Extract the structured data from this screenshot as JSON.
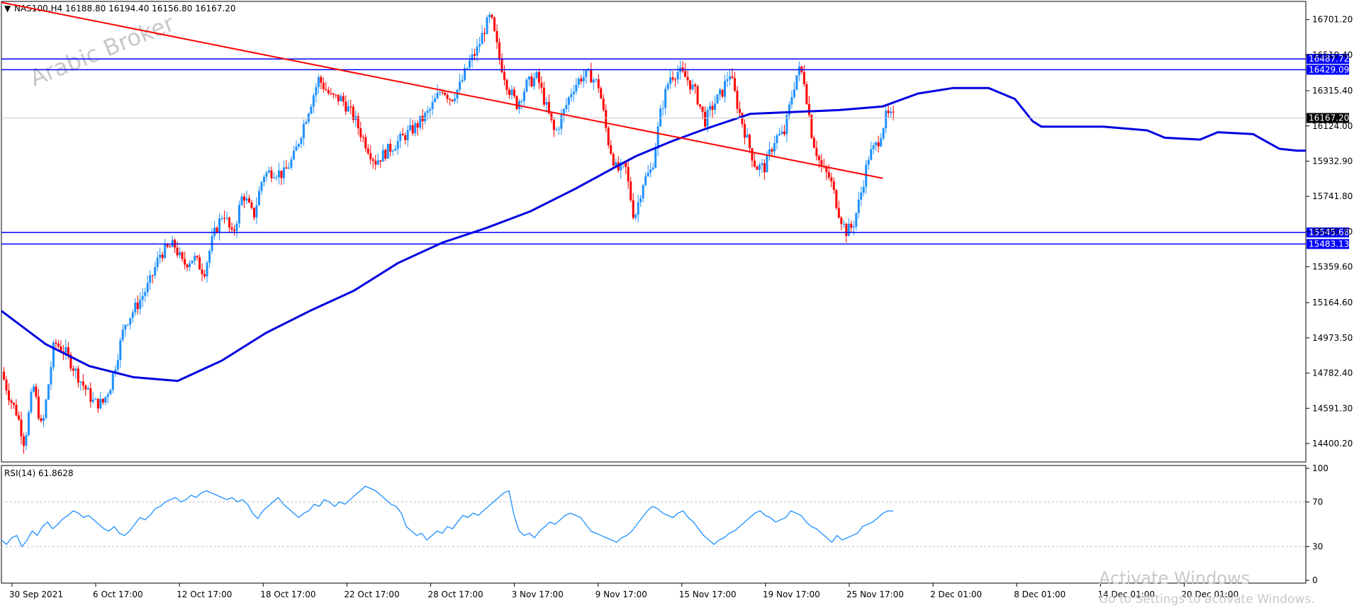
{
  "header": {
    "symbol": "NAS100,H4",
    "ohlc": "16188.80 16194.40 16156.80 16167.20",
    "arrow_glyph": "▼"
  },
  "watermark": "Arabic Broker",
  "os_watermark": {
    "line1": "Activate Windows",
    "line2": "Go to Settings to activate Windows."
  },
  "colors": {
    "bull": "#1e90ff",
    "bear": "#ff0000",
    "ma": "#0000e0",
    "trendline": "#ff0000",
    "level": "#0000ff",
    "rsi": "#1e90ff",
    "grid_dash": "#c0c0c0",
    "last_price_bg": "#000000",
    "level_label_bg": "#0000ff"
  },
  "chart_data": [
    {
      "type": "candlestick",
      "name": "price",
      "ylim": [
        14300,
        16800
      ],
      "y_ticks": [
        "16701.20",
        "16510.40",
        "16315.40",
        "16124.00",
        "15932.90",
        "15741.80",
        "15550.70",
        "15359.60",
        "15164.60",
        "14973.50",
        "14782.40",
        "14591.30",
        "14400.20"
      ],
      "x_ticks": [
        "30 Sep 2021",
        "6 Oct 17:00",
        "12 Oct 17:00",
        "18 Oct 17:00",
        "22 Oct 17:00",
        "28 Oct 17:00",
        "3 Nov 17:00",
        "9 Nov 17:00",
        "15 Nov 17:00",
        "19 Nov 17:00",
        "25 Nov 17:00",
        "2 Dec 01:00",
        "8 Dec 01:00",
        "14 Dec 01:00",
        "20 Dec 01:00"
      ],
      "bar_count": 360,
      "close_path": [
        [
          0,
          14790
        ],
        [
          10,
          14640
        ],
        [
          18,
          14560
        ],
        [
          26,
          14400
        ],
        [
          36,
          14720
        ],
        [
          46,
          14470
        ],
        [
          60,
          14950
        ],
        [
          72,
          14900
        ],
        [
          90,
          14740
        ],
        [
          105,
          14620
        ],
        [
          115,
          14620
        ],
        [
          124,
          14720
        ],
        [
          140,
          15050
        ],
        [
          155,
          15160
        ],
        [
          168,
          15270
        ],
        [
          180,
          15430
        ],
        [
          196,
          15480
        ],
        [
          206,
          15370
        ],
        [
          218,
          15410
        ],
        [
          230,
          15330
        ],
        [
          240,
          15520
        ],
        [
          252,
          15660
        ],
        [
          262,
          15520
        ],
        [
          274,
          15760
        ],
        [
          286,
          15630
        ],
        [
          297,
          15860
        ],
        [
          309,
          15880
        ],
        [
          320,
          15860
        ],
        [
          332,
          15960
        ],
        [
          344,
          16150
        ],
        [
          360,
          16380
        ],
        [
          374,
          16280
        ],
        [
          386,
          16270
        ],
        [
          400,
          16170
        ],
        [
          410,
          16060
        ],
        [
          424,
          15930
        ],
        [
          438,
          15990
        ],
        [
          455,
          16060
        ],
        [
          470,
          16120
        ],
        [
          485,
          16200
        ],
        [
          500,
          16330
        ],
        [
          510,
          16270
        ],
        [
          520,
          16340
        ],
        [
          530,
          16460
        ],
        [
          540,
          16540
        ],
        [
          548,
          16650
        ],
        [
          555,
          16720
        ],
        [
          565,
          16490
        ],
        [
          575,
          16330
        ],
        [
          585,
          16240
        ],
        [
          596,
          16350
        ],
        [
          608,
          16390
        ],
        [
          618,
          16230
        ],
        [
          628,
          16080
        ],
        [
          638,
          16200
        ],
        [
          648,
          16330
        ],
        [
          658,
          16390
        ],
        [
          668,
          16400
        ],
        [
          678,
          16340
        ],
        [
          688,
          16050
        ],
        [
          698,
          15880
        ],
        [
          708,
          15900
        ],
        [
          718,
          15620
        ],
        [
          728,
          15820
        ],
        [
          738,
          15890
        ],
        [
          748,
          16200
        ],
        [
          758,
          16390
        ],
        [
          768,
          16420
        ],
        [
          778,
          16380
        ],
        [
          788,
          16300
        ],
        [
          798,
          16150
        ],
        [
          808,
          16240
        ],
        [
          818,
          16310
        ],
        [
          826,
          16420
        ],
        [
          836,
          16220
        ],
        [
          846,
          16050
        ],
        [
          856,
          15900
        ],
        [
          866,
          15900
        ],
        [
          878,
          16060
        ],
        [
          888,
          16080
        ],
        [
          898,
          16320
        ],
        [
          904,
          16430
        ],
        [
          910,
          16400
        ],
        [
          920,
          16060
        ],
        [
          930,
          15900
        ],
        [
          940,
          15840
        ],
        [
          950,
          15660
        ],
        [
          958,
          15550
        ],
        [
          966,
          15580
        ],
        [
          974,
          15730
        ],
        [
          984,
          15960
        ],
        [
          994,
          16030
        ],
        [
          1004,
          16180
        ],
        [
          1012,
          16167
        ]
      ],
      "moving_average": {
        "period": null,
        "points": [
          [
            0,
            15120
          ],
          [
            50,
            14940
          ],
          [
            100,
            14820
          ],
          [
            150,
            14760
          ],
          [
            200,
            14740
          ],
          [
            250,
            14850
          ],
          [
            300,
            15000
          ],
          [
            350,
            15120
          ],
          [
            400,
            15230
          ],
          [
            450,
            15380
          ],
          [
            500,
            15490
          ],
          [
            550,
            15570
          ],
          [
            600,
            15660
          ],
          [
            650,
            15780
          ],
          [
            700,
            15910
          ],
          [
            720,
            15960
          ],
          [
            760,
            16040
          ],
          [
            800,
            16110
          ],
          [
            850,
            16190
          ],
          [
            900,
            16200
          ],
          [
            950,
            16210
          ],
          [
            1000,
            16230
          ],
          [
            1040,
            16300
          ],
          [
            1080,
            16330
          ],
          [
            1120,
            16330
          ],
          [
            1150,
            16270
          ],
          [
            1170,
            16150
          ],
          [
            1180,
            16120
          ],
          [
            1250,
            16120
          ],
          [
            1300,
            16100
          ],
          [
            1320,
            16060
          ],
          [
            1360,
            16050
          ],
          [
            1380,
            16090
          ],
          [
            1420,
            16080
          ],
          [
            1450,
            16000
          ],
          [
            1470,
            15990
          ],
          [
            1480,
            15990
          ]
        ]
      },
      "trendline": {
        "from": {
          "bar": 0,
          "value": 16795
        },
        "to": {
          "bar": 1000,
          "value": 15840
        }
      },
      "horizontal_levels": [
        {
          "label": "16487.72",
          "value": 16487.72
        },
        {
          "label": "16429.09",
          "value": 16429.09
        },
        {
          "label": "15545.68",
          "value": 15545.68
        },
        {
          "label": "15483.13",
          "value": 15483.13
        }
      ],
      "last_price": {
        "label": "16167.20",
        "value": 16167.2
      }
    },
    {
      "type": "line",
      "name": "RSI(14) 61.8628",
      "title": "RSI(14) 61.8628",
      "ylim": [
        0,
        100
      ],
      "y_ticks": [
        "100",
        "70",
        "30",
        "0"
      ],
      "levels": [
        70,
        30
      ],
      "values": [
        36,
        32,
        38,
        40,
        30,
        36,
        44,
        40,
        48,
        52,
        46,
        50,
        55,
        58,
        62,
        60,
        56,
        58,
        54,
        50,
        46,
        44,
        48,
        42,
        40,
        44,
        50,
        56,
        54,
        58,
        64,
        66,
        70,
        72,
        74,
        70,
        72,
        76,
        74,
        78,
        80,
        78,
        76,
        74,
        72,
        74,
        70,
        72,
        68,
        60,
        55,
        62,
        66,
        70,
        74,
        68,
        64,
        60,
        56,
        60,
        62,
        68,
        66,
        72,
        70,
        66,
        70,
        68,
        72,
        76,
        80,
        84,
        82,
        80,
        76,
        72,
        68,
        66,
        60,
        48,
        44,
        40,
        42,
        36,
        40,
        44,
        42,
        48,
        46,
        52,
        58,
        56,
        60,
        58,
        62,
        66,
        70,
        74,
        78,
        80,
        58,
        44,
        40,
        42,
        38,
        44,
        48,
        52,
        50,
        54,
        58,
        60,
        58,
        56,
        50,
        44,
        42,
        40,
        38,
        36,
        34,
        38,
        40,
        44,
        50,
        56,
        62,
        66,
        64,
        60,
        58,
        56,
        60,
        62,
        56,
        52,
        46,
        40,
        36,
        32,
        36,
        38,
        42,
        44,
        48,
        52,
        56,
        60,
        62,
        58,
        56,
        52,
        54,
        56,
        62,
        60,
        58,
        52,
        48,
        46,
        42,
        38,
        34,
        40,
        36,
        38,
        40,
        42,
        48,
        50,
        52,
        56,
        60,
        62,
        61.86
      ]
    }
  ]
}
